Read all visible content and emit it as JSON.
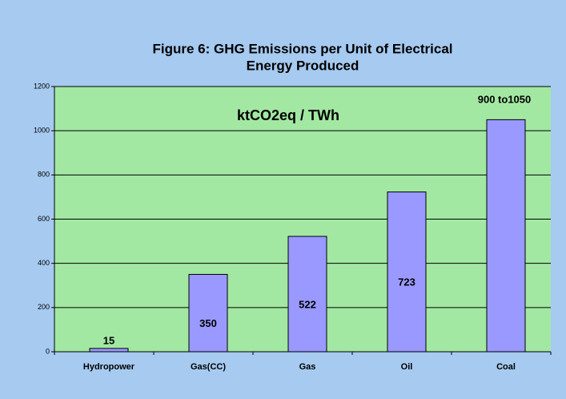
{
  "chart_data": {
    "type": "bar",
    "title": [
      "Figure 6: GHG Emissions per Unit of Electrical",
      "Energy Produced"
    ],
    "annotation": "ktCO2eq / TWh",
    "categories": [
      "Hydropower",
      "Gas(CC)",
      "Gas",
      "Oil",
      "Coal"
    ],
    "values": [
      15,
      350,
      522,
      723,
      1050
    ],
    "value_labels": [
      "15",
      "350",
      "522",
      "723",
      "900 to1050"
    ],
    "color": "#9999ff",
    "ylim": [
      0,
      1200
    ],
    "yticks": [
      0,
      200,
      400,
      600,
      800,
      1000,
      1200
    ],
    "grid": true
  }
}
